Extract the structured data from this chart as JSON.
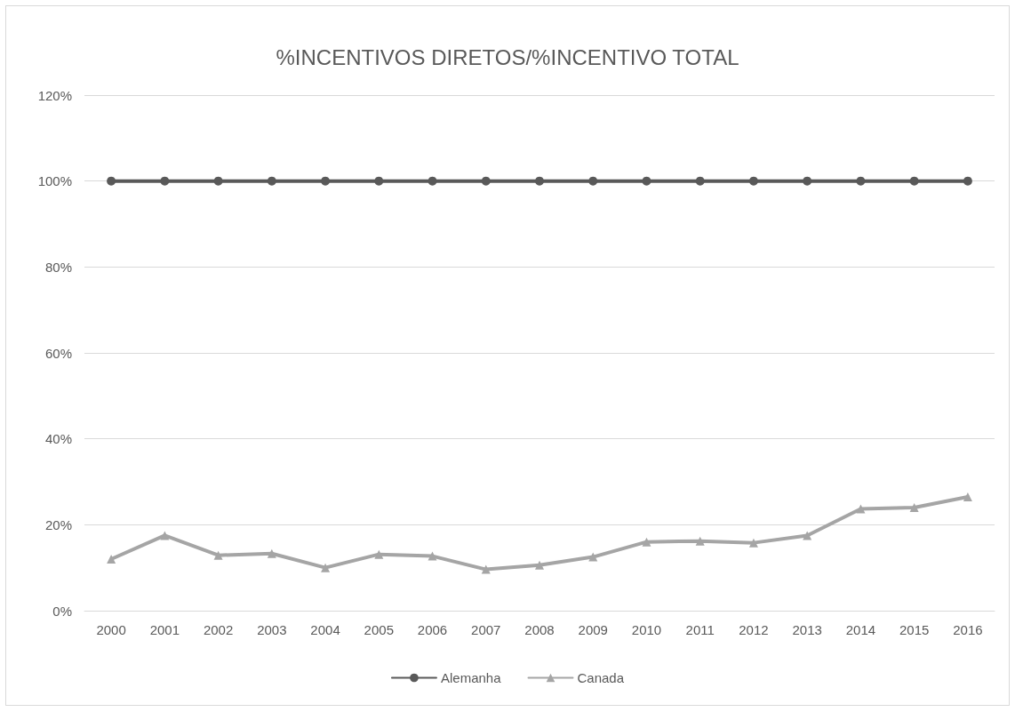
{
  "chart_data": {
    "type": "line",
    "title": "%INCENTIVOS DIRETOS/%INCENTIVO TOTAL",
    "categories": [
      "2000",
      "2001",
      "2002",
      "2003",
      "2004",
      "2005",
      "2006",
      "2007",
      "2008",
      "2009",
      "2010",
      "2011",
      "2012",
      "2013",
      "2014",
      "2015",
      "2016"
    ],
    "series": [
      {
        "name": "Alemanha",
        "color": "#595959",
        "marker": "circle",
        "values": [
          100,
          100,
          100,
          100,
          100,
          100,
          100,
          100,
          100,
          100,
          100,
          100,
          100,
          100,
          100,
          100,
          100
        ]
      },
      {
        "name": "Canada",
        "color": "#a5a5a5",
        "marker": "triangle",
        "values": [
          12,
          17.5,
          12.9,
          13.3,
          10,
          13.1,
          12.7,
          9.6,
          10.6,
          12.5,
          16,
          16.2,
          15.8,
          17.5,
          23.7,
          24,
          26.5
        ]
      }
    ],
    "ylim": [
      0,
      120
    ],
    "yticks": [
      {
        "value": 0,
        "label": "0%"
      },
      {
        "value": 20,
        "label": "20%"
      },
      {
        "value": 40,
        "label": "40%"
      },
      {
        "value": 60,
        "label": "60%"
      },
      {
        "value": 80,
        "label": "80%"
      },
      {
        "value": 100,
        "label": "100%"
      },
      {
        "value": 120,
        "label": "120%"
      }
    ],
    "grid": "y",
    "legend": "bottom",
    "line_style": "solid"
  }
}
